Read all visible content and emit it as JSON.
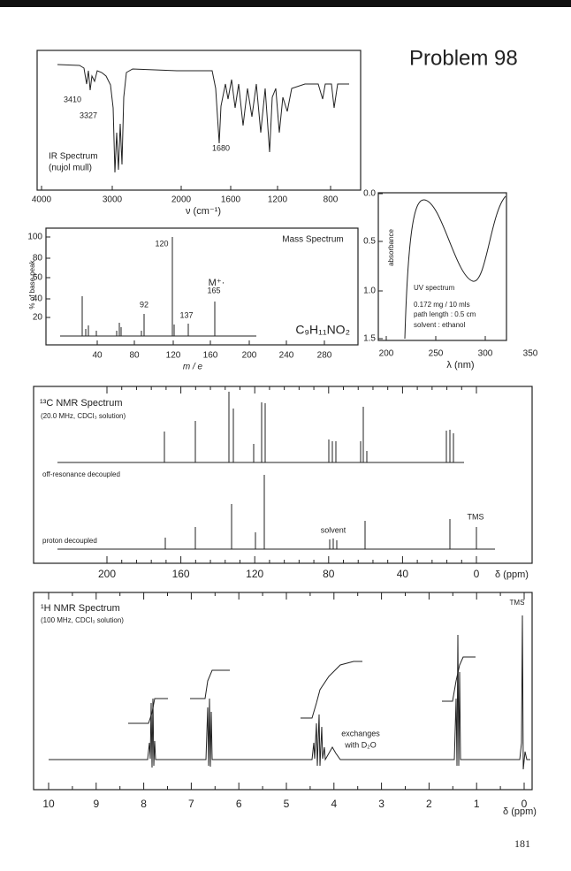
{
  "header": {
    "title": "Problem 98"
  },
  "ir": {
    "peak_labels": [
      "3410",
      "3327",
      "1680"
    ],
    "name": "IR Spectrum",
    "medium": "(nujol mull)",
    "x_ticks": [
      "4000",
      "3000",
      "2000",
      "1600",
      "1200",
      "800"
    ],
    "x_label": "ν (cm⁻¹)"
  },
  "mass": {
    "name": "Mass Spectrum",
    "y_label": "% of base peak",
    "y_ticks": [
      "100",
      "80",
      "60",
      "40",
      "20"
    ],
    "x_ticks": [
      "40",
      "80",
      "120",
      "160",
      "200",
      "240",
      "280"
    ],
    "x_label": "m / e",
    "peak_labels": [
      "120",
      "92",
      "137",
      "165"
    ],
    "molecular_ion": "M⁺·",
    "formula": "C₉H₁₁NO₂"
  },
  "uv": {
    "y_label": "absorbance",
    "y_ticks": [
      "0.0",
      "0.5",
      "1.0",
      "1.5"
    ],
    "x_ticks": [
      "200",
      "250",
      "300",
      "350"
    ],
    "x_label": "λ (nm)",
    "notes": [
      "UV spectrum",
      "0.172 mg / 10 mls",
      "path length :  0.5 cm",
      "solvent : ethanol"
    ]
  },
  "c13": {
    "name": "¹³C  NMR Spectrum",
    "conditions": "(20.0 MHz, CDCl₃ solution)",
    "traces": [
      "off-resonance decoupled",
      "proton decoupled"
    ],
    "solvent": "solvent",
    "reference": "TMS",
    "x_ticks": [
      "200",
      "160",
      "120",
      "80",
      "40",
      "0"
    ],
    "x_label": "δ (ppm)"
  },
  "h1": {
    "name": "¹H NMR Spectrum",
    "conditions": "(100 MHz, CDCl₃ solution)",
    "reference": "TMS",
    "note": [
      "exchanges",
      "with D₂O"
    ],
    "x_ticks": [
      "10",
      "9",
      "8",
      "7",
      "6",
      "5",
      "4",
      "3",
      "2",
      "1",
      "0"
    ],
    "x_label": "δ (ppm)"
  },
  "footer": {
    "page": "181"
  }
}
